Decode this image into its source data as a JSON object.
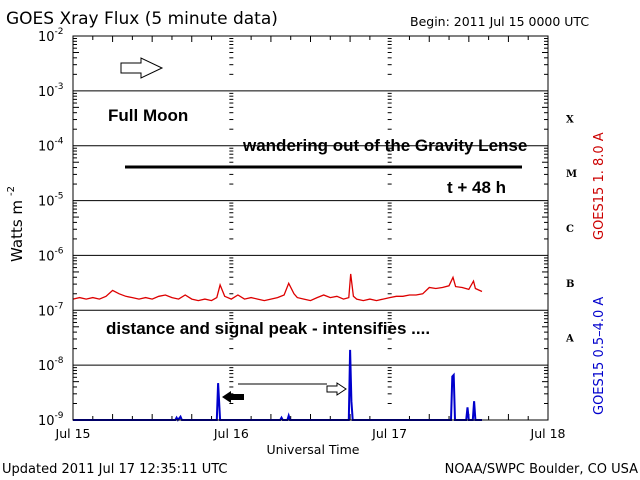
{
  "chart_data": {
    "type": "line",
    "title": "GOES Xray Flux (5 minute data)",
    "begin_label": "Begin:  2011 Jul 15 0000 UTC",
    "xlabel": "Universal Time",
    "ylabel": "Watts m",
    "ylabel_sup": "-2",
    "x_unit": "hours since 2011 Jul 15 0000 UTC",
    "xlim": [
      0,
      72
    ],
    "ylim": [
      1e-09,
      0.01
    ],
    "yscale": "log",
    "x_ticks": [
      {
        "value": 0,
        "label": "Jul 15"
      },
      {
        "value": 24,
        "label": "Jul 16"
      },
      {
        "value": 48,
        "label": "Jul 17"
      },
      {
        "value": 72,
        "label": "Jul 18"
      }
    ],
    "y_ticks": [
      {
        "exp": -2,
        "base": "10",
        "sup": "-2"
      },
      {
        "exp": -3,
        "base": "10",
        "sup": "-3"
      },
      {
        "exp": -4,
        "base": "10",
        "sup": "-4"
      },
      {
        "exp": -5,
        "base": "10",
        "sup": "-5"
      },
      {
        "exp": -6,
        "base": "10",
        "sup": "-6"
      },
      {
        "exp": -7,
        "base": "10",
        "sup": "-7"
      },
      {
        "exp": -8,
        "base": "10",
        "sup": "-8"
      },
      {
        "exp": -9,
        "base": "10",
        "sup": "-9"
      }
    ],
    "flare_classes": [
      {
        "label": "X",
        "exp": -3.5
      },
      {
        "label": "M",
        "exp": -4.5
      },
      {
        "label": "C",
        "exp": -5.5
      },
      {
        "label": "B",
        "exp": -6.5
      },
      {
        "label": "A",
        "exp": -7.5
      }
    ],
    "grid": "horizontal at decades",
    "series": [
      {
        "name": "GOES15 1.  8.0 A",
        "color": "#dd0000",
        "points": [
          [
            0,
            1.6e-07
          ],
          [
            1,
            1.7e-07
          ],
          [
            2,
            1.6e-07
          ],
          [
            3,
            1.7e-07
          ],
          [
            4,
            1.6e-07
          ],
          [
            5,
            1.8e-07
          ],
          [
            6,
            2.3e-07
          ],
          [
            7,
            2e-07
          ],
          [
            8,
            1.8e-07
          ],
          [
            9,
            1.7e-07
          ],
          [
            10,
            1.6e-07
          ],
          [
            11,
            1.7e-07
          ],
          [
            12,
            1.6e-07
          ],
          [
            13,
            1.8e-07
          ],
          [
            14,
            1.9e-07
          ],
          [
            15,
            1.7e-07
          ],
          [
            16,
            1.6e-07
          ],
          [
            17,
            1.9e-07
          ],
          [
            18,
            1.6e-07
          ],
          [
            19,
            1.5e-07
          ],
          [
            20,
            1.6e-07
          ],
          [
            21,
            1.5e-07
          ],
          [
            21.8,
            1.7e-07
          ],
          [
            22.3,
            2.9e-07
          ],
          [
            23,
            1.8e-07
          ],
          [
            24,
            1.6e-07
          ],
          [
            25,
            1.9e-07
          ],
          [
            26,
            1.6e-07
          ],
          [
            27,
            1.7e-07
          ],
          [
            28,
            1.6e-07
          ],
          [
            29,
            1.5e-07
          ],
          [
            30,
            1.6e-07
          ],
          [
            31,
            1.7e-07
          ],
          [
            32,
            1.9e-07
          ],
          [
            32.7,
            3.1e-07
          ],
          [
            33.5,
            2e-07
          ],
          [
            34,
            1.7e-07
          ],
          [
            35,
            1.6e-07
          ],
          [
            36,
            1.5e-07
          ],
          [
            37,
            1.7e-07
          ],
          [
            38,
            1.9e-07
          ],
          [
            39,
            1.7e-07
          ],
          [
            40,
            1.8e-07
          ],
          [
            41,
            1.6e-07
          ],
          [
            41.8,
            1.7e-07
          ],
          [
            42.1,
            4.6e-07
          ],
          [
            42.5,
            1.8e-07
          ],
          [
            43,
            1.6e-07
          ],
          [
            44,
            1.5e-07
          ],
          [
            45,
            1.6e-07
          ],
          [
            46,
            1.5e-07
          ],
          [
            47,
            1.6e-07
          ],
          [
            48,
            1.7e-07
          ],
          [
            49,
            1.8e-07
          ],
          [
            50,
            1.8e-07
          ],
          [
            51,
            1.9e-07
          ],
          [
            52,
            1.9e-07
          ],
          [
            53,
            2e-07
          ],
          [
            54,
            2.6e-07
          ],
          [
            55,
            2.5e-07
          ],
          [
            56,
            2.6e-07
          ],
          [
            57,
            2.8e-07
          ],
          [
            57.6,
            4e-07
          ],
          [
            58,
            2.7e-07
          ],
          [
            59,
            2.6e-07
          ],
          [
            60,
            2.4e-07
          ],
          [
            60.7,
            3.4e-07
          ],
          [
            61,
            2.5e-07
          ],
          [
            62,
            2.2e-07
          ]
        ]
      },
      {
        "name": "GOES15 0.5-4.0 A",
        "label": "GOES15 0.5–4.0 A",
        "color": "#0000cc",
        "points": [
          [
            0,
            1e-09
          ],
          [
            15.5,
            1e-09
          ],
          [
            15.7,
            1.1e-09
          ],
          [
            15.9,
            1e-09
          ],
          [
            16.3,
            1.15e-09
          ],
          [
            16.5,
            1e-09
          ],
          [
            21.8,
            1e-09
          ],
          [
            22.0,
            4.7e-09
          ],
          [
            22.3,
            1e-09
          ],
          [
            31.4,
            1e-09
          ],
          [
            31.6,
            1.1e-09
          ],
          [
            31.8,
            1e-09
          ],
          [
            32.5,
            1e-09
          ],
          [
            32.7,
            1.2e-09
          ],
          [
            32.9,
            1e-09
          ],
          [
            41.8,
            1e-09
          ],
          [
            42.0,
            1.9e-08
          ],
          [
            42.2,
            2.2e-09
          ],
          [
            42.4,
            1e-09
          ],
          [
            57.3,
            1e-09
          ],
          [
            57.5,
            6.2e-09
          ],
          [
            57.7,
            6.6e-09
          ],
          [
            57.9,
            1e-09
          ],
          [
            59.6,
            1e-09
          ],
          [
            59.8,
            1.7e-09
          ],
          [
            60.0,
            1e-09
          ],
          [
            60.6,
            1e-09
          ],
          [
            60.8,
            2.2e-09
          ],
          [
            61.0,
            1e-09
          ],
          [
            62,
            1e-09
          ]
        ]
      }
    ],
    "annotations": {
      "full_moon": "Full Moon",
      "wandering": "wandering out of the Gravity Lense",
      "t48": "t + 48 h",
      "distance": "distance and signal peak - intensifies ...."
    }
  },
  "footer": {
    "updated": "Updated 2011 Jul 17 12:35:11 UTC",
    "source": "NOAA/SWPC Boulder, CO USA"
  }
}
